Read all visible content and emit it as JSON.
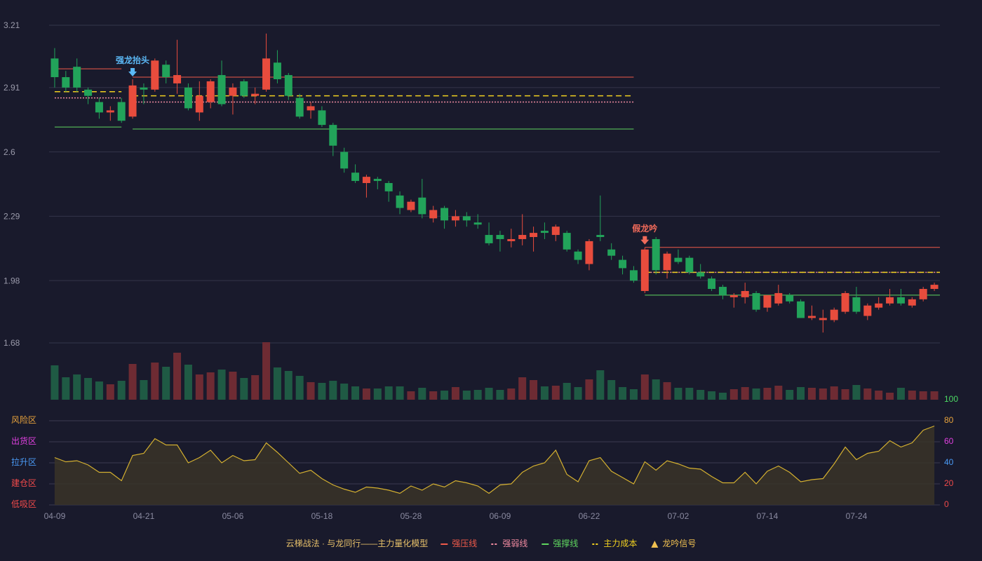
{
  "chart_data": [
    {
      "type": "candlestick",
      "ylim": [
        1.68,
        3.21
      ],
      "yticks": [
        1.68,
        1.98,
        2.29,
        2.6,
        {
          "value": 2.91,
          "label": "2.91"
        },
        3.21
      ],
      "up_color": "#e84c3d",
      "down_color": "#22a35a",
      "open": [
        3.05,
        2.96,
        3.01,
        2.9,
        2.84,
        2.79,
        2.84,
        2.77,
        2.91,
        2.9,
        3.02,
        2.93,
        2.91,
        2.79,
        2.84,
        2.97,
        2.87,
        2.94,
        2.87,
        2.9,
        3.03,
        2.97,
        2.86,
        2.8,
        2.8,
        2.73,
        2.6,
        2.5,
        2.45,
        2.47,
        2.45,
        2.39,
        2.32,
        2.38,
        2.28,
        2.33,
        2.27,
        2.29,
        2.26,
        2.2,
        2.2,
        2.17,
        2.18,
        2.19,
        2.22,
        2.2,
        2.21,
        2.12,
        2.06,
        2.2,
        2.13,
        2.08,
        2.03,
        1.93,
        2.18,
        2.03,
        2.09,
        2.09,
        2.02,
        1.99,
        1.95,
        1.9,
        1.9,
        1.92,
        1.85,
        1.87,
        1.91,
        1.88,
        1.8,
        1.79,
        1.79,
        1.83,
        1.9,
        1.81,
        1.85,
        1.87,
        1.9,
        1.86,
        1.89,
        1.94
      ],
      "high": [
        3.1,
        2.99,
        3.05,
        2.91,
        2.86,
        2.82,
        2.86,
        2.95,
        2.93,
        3.05,
        3.04,
        3.14,
        2.93,
        2.94,
        2.95,
        3.04,
        2.93,
        2.95,
        2.91,
        3.17,
        3.09,
        2.98,
        2.88,
        2.84,
        2.82,
        2.74,
        2.62,
        2.54,
        2.49,
        2.48,
        2.46,
        2.41,
        2.37,
        2.47,
        2.34,
        2.34,
        2.32,
        2.31,
        2.3,
        2.26,
        2.22,
        2.23,
        2.3,
        2.24,
        2.26,
        2.25,
        2.22,
        2.13,
        2.18,
        2.39,
        2.16,
        2.1,
        2.05,
        2.14,
        2.19,
        2.12,
        2.13,
        2.1,
        2.06,
        2.0,
        1.96,
        1.92,
        1.97,
        1.93,
        1.91,
        1.96,
        1.92,
        1.89,
        1.86,
        1.84,
        1.85,
        1.93,
        1.95,
        1.87,
        1.9,
        1.94,
        1.94,
        1.9,
        1.95,
        1.97
      ],
      "low": [
        2.91,
        2.89,
        2.89,
        2.83,
        2.76,
        2.75,
        2.74,
        2.76,
        2.83,
        2.89,
        2.93,
        2.88,
        2.8,
        2.75,
        2.81,
        2.82,
        2.78,
        2.86,
        2.83,
        2.89,
        2.93,
        2.85,
        2.76,
        2.76,
        2.72,
        2.58,
        2.5,
        2.45,
        2.38,
        2.42,
        2.36,
        2.3,
        2.31,
        2.28,
        2.26,
        2.23,
        2.24,
        2.24,
        2.23,
        2.15,
        2.12,
        2.14,
        2.15,
        2.12,
        2.18,
        2.17,
        2.12,
        2.06,
        2.03,
        2.17,
        2.08,
        2.01,
        1.97,
        1.92,
        2.01,
        1.99,
        2.06,
        2.01,
        1.99,
        1.93,
        1.89,
        1.85,
        1.87,
        1.83,
        1.83,
        1.86,
        1.87,
        1.8,
        1.79,
        1.73,
        1.78,
        1.82,
        1.82,
        1.79,
        1.84,
        1.86,
        1.86,
        1.85,
        1.88,
        1.93
      ],
      "close": [
        2.96,
        2.91,
        2.91,
        2.87,
        2.79,
        2.8,
        2.75,
        2.92,
        2.9,
        3.04,
        2.96,
        2.97,
        2.81,
        2.87,
        2.94,
        2.83,
        2.91,
        2.87,
        2.88,
        3.05,
        2.95,
        2.87,
        2.77,
        2.82,
        2.73,
        2.63,
        2.52,
        2.46,
        2.48,
        2.46,
        2.41,
        2.33,
        2.36,
        2.3,
        2.32,
        2.27,
        2.29,
        2.27,
        2.25,
        2.16,
        2.18,
        2.18,
        2.2,
        2.21,
        2.21,
        2.24,
        2.13,
        2.08,
        2.17,
        2.19,
        2.1,
        2.04,
        1.98,
        2.13,
        2.03,
        2.11,
        2.07,
        2.02,
        2.0,
        1.94,
        1.91,
        1.91,
        1.93,
        1.84,
        1.91,
        1.92,
        1.88,
        1.8,
        1.81,
        1.8,
        1.84,
        1.92,
        1.83,
        1.86,
        1.87,
        1.9,
        1.87,
        1.89,
        1.94,
        1.96
      ],
      "overlays": [
        {
          "name": "强压线",
          "color": "#f05a4a",
          "dash": "none",
          "segments": [
            {
              "start": 0,
              "end": 6,
              "value": 3.0
            },
            {
              "start": 7,
              "end": 52,
              "value": 2.96
            },
            {
              "start": 53,
              "end": 79,
              "value": 2.14
            }
          ]
        },
        {
          "name": "强弱线",
          "color": "#f08aa0",
          "dash": "2 2",
          "segments": [
            {
              "start": 0,
              "end": 6,
              "value": 2.86
            },
            {
              "start": 7,
              "end": 52,
              "value": 2.84
            },
            {
              "start": 53,
              "end": 79,
              "value": 2.02
            }
          ]
        },
        {
          "name": "强撑线",
          "color": "#5fd65f",
          "dash": "none",
          "segments": [
            {
              "start": 0,
              "end": 6,
              "value": 2.72
            },
            {
              "start": 7,
              "end": 52,
              "value": 2.71
            },
            {
              "start": 53,
              "end": 79,
              "value": 1.91
            }
          ]
        },
        {
          "name": "主力成本",
          "color": "#f0d020",
          "dash": "8 5",
          "segments": [
            {
              "start": 0,
              "end": 6,
              "value": 2.89
            },
            {
              "start": 7,
              "end": 52,
              "value": 2.87
            },
            {
              "start": 53,
              "end": 79,
              "value": 2.02
            }
          ]
        }
      ],
      "signals": {
        "name": "龙吟信号",
        "color": "#f0c050",
        "items": [
          {
            "label": "强龙抬头",
            "index": 7,
            "color": "#5bb8f5"
          },
          {
            "label": "假龙吟",
            "index": 53,
            "color": "#f06a5a"
          }
        ]
      },
      "legend_title": "云梯战法 · 与龙同行——主力量化模型",
      "legend_title_color": "#e8c16a"
    },
    {
      "type": "bar",
      "up_color": "#6e2b33",
      "down_color": "#1f5a44",
      "values": [
        49,
        32,
        36,
        31,
        26,
        22,
        27,
        51,
        28,
        53,
        47,
        67,
        50,
        36,
        39,
        43,
        40,
        31,
        35,
        82,
        46,
        41,
        34,
        25,
        24,
        27,
        23,
        19,
        16,
        16,
        19,
        19,
        12,
        17,
        12,
        13,
        18,
        13,
        14,
        17,
        14,
        16,
        32,
        28,
        19,
        20,
        24,
        18,
        29,
        42,
        28,
        18,
        15,
        36,
        29,
        25,
        17,
        17,
        14,
        12,
        10,
        15,
        18,
        16,
        17,
        20,
        14,
        18,
        17,
        16,
        19,
        15,
        21,
        16,
        13,
        10,
        17,
        13,
        12,
        12
      ]
    },
    {
      "type": "line",
      "color": "#d4b030",
      "fill": "#3a3428",
      "ylim": [
        0,
        100
      ],
      "yticks": [
        0,
        20,
        40,
        60,
        80,
        100
      ],
      "ytick_colors": [
        "#f04a4a",
        "#f04a4a",
        "#4a9af5",
        "#e040e0",
        "#e8a33c",
        "#4cd964"
      ],
      "zones": [
        "低吸区",
        "建仓区",
        "拉升区",
        "出货区",
        "风险区"
      ],
      "zone_colors": [
        "#f04a4a",
        "#f04a4a",
        "#4a9af5",
        "#e040e0",
        "#e8a33c"
      ],
      "categories": [
        "04-09",
        null,
        null,
        null,
        null,
        null,
        null,
        null,
        "04-21",
        null,
        null,
        null,
        null,
        null,
        null,
        null,
        "05-06",
        null,
        null,
        null,
        null,
        null,
        null,
        null,
        "05-18",
        null,
        null,
        null,
        null,
        null,
        null,
        null,
        "05-28",
        null,
        null,
        null,
        null,
        null,
        null,
        null,
        "06-09",
        null,
        null,
        null,
        null,
        null,
        null,
        null,
        "06-22",
        null,
        null,
        null,
        null,
        null,
        null,
        null,
        "07-02",
        null,
        null,
        null,
        null,
        null,
        null,
        null,
        "07-14",
        null,
        null,
        null,
        null,
        null,
        null,
        null,
        "07-24",
        null,
        null,
        null,
        null,
        null,
        null,
        null
      ],
      "values": [
        45,
        41,
        42,
        38,
        31,
        31,
        23,
        47,
        49,
        63,
        57,
        57,
        40,
        45,
        52,
        40,
        47,
        42,
        43,
        59,
        50,
        40,
        30,
        33,
        25,
        19,
        15,
        12,
        17,
        16,
        14,
        11,
        18,
        14,
        20,
        17,
        23,
        21,
        18,
        11,
        19,
        20,
        31,
        37,
        40,
        52,
        29,
        22,
        42,
        45,
        32,
        26,
        20,
        41,
        33,
        42,
        39,
        35,
        34,
        27,
        21,
        21,
        31,
        20,
        32,
        37,
        31,
        22,
        24,
        25,
        39,
        55,
        43,
        49,
        51,
        61,
        55,
        59,
        71,
        75
      ]
    }
  ]
}
